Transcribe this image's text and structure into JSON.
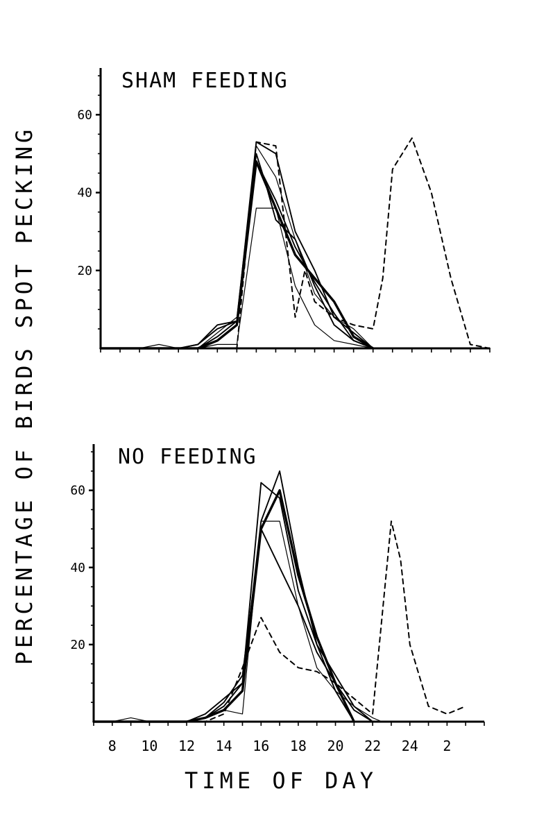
{
  "figure": {
    "ylabel": "PERCENTAGE OF BIRDS SPOT PECKING",
    "xlabel": "TIME OF DAY"
  },
  "chart_data": [
    {
      "type": "line",
      "title": "SHAM FEEDING",
      "xlabel": "TIME OF DAY",
      "ylabel": "PERCENTAGE OF BIRDS SPOT PECKING",
      "xlim": [
        8,
        28
      ],
      "ylim": [
        0,
        72
      ],
      "yticks": [
        "20",
        "40",
        "60"
      ],
      "ytick_values": [
        20,
        40,
        60
      ],
      "grid": false,
      "series": [
        {
          "style": "solid-heavy",
          "x": [
            8,
            11,
            12,
            13,
            14,
            14.5,
            15,
            16,
            17,
            18,
            20,
            21,
            22
          ],
          "y": [
            0,
            0,
            0,
            0,
            2,
            4,
            6,
            48,
            36,
            24,
            12,
            3,
            0
          ]
        },
        {
          "style": "solid",
          "x": [
            8,
            11,
            12,
            13,
            14,
            15,
            16,
            17,
            18,
            19,
            20,
            21,
            22
          ],
          "y": [
            0,
            0,
            0,
            1,
            5,
            7,
            53,
            50,
            30,
            20,
            8,
            4,
            0
          ]
        },
        {
          "style": "solid",
          "x": [
            8,
            12,
            13,
            14,
            15,
            16,
            16.5,
            17,
            18,
            19,
            20,
            21,
            22
          ],
          "y": [
            0,
            0,
            0,
            3,
            7,
            50,
            42,
            33,
            28,
            16,
            6,
            2,
            0
          ]
        },
        {
          "style": "solid",
          "x": [
            8,
            12,
            13,
            14,
            15,
            16,
            17,
            18,
            19,
            20,
            21,
            22
          ],
          "y": [
            0,
            0,
            1,
            6,
            7,
            48,
            38,
            26,
            17,
            9,
            2,
            0
          ]
        },
        {
          "style": "solid-thin",
          "x": [
            8,
            10,
            11,
            12,
            13,
            14,
            15,
            16,
            17,
            18,
            19,
            20,
            21,
            22
          ],
          "y": [
            0,
            0,
            1,
            0,
            0,
            1,
            1,
            36,
            36,
            16,
            6,
            2,
            1,
            0
          ]
        },
        {
          "style": "solid-thin",
          "x": [
            8,
            12,
            13,
            14,
            15,
            16,
            17,
            18,
            19,
            20,
            21,
            22
          ],
          "y": [
            0,
            0,
            0,
            4,
            8,
            52,
            44,
            28,
            14,
            8,
            5,
            0
          ]
        },
        {
          "style": "dashed",
          "x": [
            8,
            12,
            14,
            15,
            16,
            17,
            18,
            18.5,
            19,
            20,
            21,
            22,
            22.5,
            23,
            24,
            25,
            26,
            27,
            28
          ],
          "y": [
            0,
            0,
            0,
            0,
            53,
            52,
            8,
            20,
            12,
            8,
            6,
            5,
            18,
            46,
            54,
            40,
            18,
            1,
            0
          ]
        }
      ]
    },
    {
      "type": "line",
      "title": "NO FEEDING",
      "xlabel": "TIME OF DAY",
      "ylabel": "PERCENTAGE OF BIRDS SPOT PECKING",
      "xlim": [
        7,
        28
      ],
      "ylim": [
        0,
        72
      ],
      "yticks": [
        "20",
        "40",
        "60"
      ],
      "ytick_values": [
        20,
        40,
        60
      ],
      "xticks": [
        "8",
        "10",
        "12",
        "14",
        "16",
        "18",
        "20",
        "22",
        "24",
        "2"
      ],
      "xtick_values": [
        8,
        10,
        12,
        14,
        16,
        18,
        20,
        22,
        24,
        26
      ],
      "grid": false,
      "series": [
        {
          "style": "solid-heavy",
          "x": [
            7,
            11,
            12,
            13,
            14,
            15,
            16,
            17,
            18,
            19,
            20,
            21
          ],
          "y": [
            0,
            0,
            0,
            1,
            3,
            8,
            50,
            60,
            38,
            22,
            10,
            0
          ]
        },
        {
          "style": "solid",
          "x": [
            7,
            11,
            12,
            13,
            14,
            15,
            16,
            16.5,
            17,
            18,
            19,
            20,
            21
          ],
          "y": [
            0,
            0,
            0,
            1,
            4,
            10,
            62,
            60,
            58,
            34,
            20,
            8,
            0
          ]
        },
        {
          "style": "solid",
          "x": [
            7,
            12,
            13,
            14,
            15,
            16,
            17,
            18,
            19,
            20,
            21,
            22
          ],
          "y": [
            0,
            0,
            1,
            5,
            12,
            50,
            40,
            30,
            18,
            10,
            3,
            0
          ]
        },
        {
          "style": "solid",
          "x": [
            7,
            12,
            13,
            14,
            15,
            16,
            17,
            18,
            19,
            20,
            21,
            22
          ],
          "y": [
            0,
            0,
            2,
            6,
            10,
            52,
            65,
            40,
            20,
            12,
            4,
            0
          ]
        },
        {
          "style": "solid-thin",
          "x": [
            7,
            8,
            9,
            10,
            12,
            13,
            14,
            15,
            16,
            17,
            18,
            19,
            20,
            21,
            22,
            22.5
          ],
          "y": [
            0,
            0,
            1,
            0,
            0,
            1,
            3,
            2,
            52,
            52,
            30,
            14,
            8,
            4,
            1,
            0
          ]
        },
        {
          "style": "dashed",
          "x": [
            7,
            12,
            13,
            14,
            15,
            16,
            17,
            18,
            19,
            20,
            21,
            22,
            23,
            23.5,
            24,
            25,
            26,
            27
          ],
          "y": [
            0,
            0,
            0,
            2,
            14,
            27,
            18,
            14,
            13,
            10,
            6,
            2,
            52,
            42,
            20,
            4,
            2,
            4
          ]
        }
      ]
    }
  ]
}
